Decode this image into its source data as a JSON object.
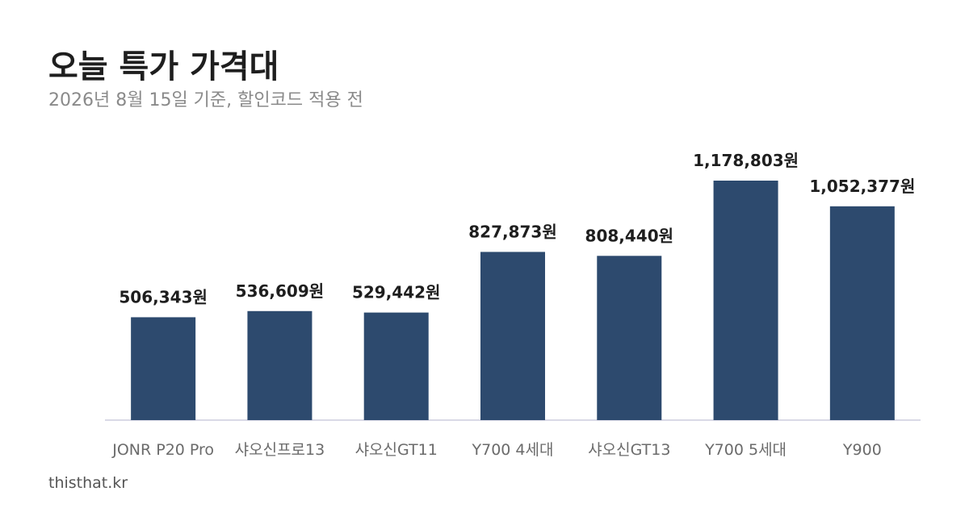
{
  "header": {
    "title": "오늘 특가 가격대",
    "subtitle": "2026년 8월 15일 기준, 할인코드 적용 전"
  },
  "footer": {
    "source": "thisthat.kr"
  },
  "colors": {
    "bar": "#2d4a6e",
    "baseline": "#d9d9e6"
  },
  "chart_data": {
    "type": "bar",
    "categories": [
      "JONR P20 Pro",
      "샤오신프로13",
      "샤오신GT11",
      "Y700 4세대",
      "샤오신GT13",
      "Y700 5세대",
      "Y900"
    ],
    "values": [
      506343,
      536609,
      529442,
      827873,
      808440,
      1178803,
      1052377
    ],
    "value_labels": [
      "506,343원",
      "536,609원",
      "529,442원",
      "827,873원",
      "808,440원",
      "1,178,803원",
      "1,052,377원"
    ],
    "ylim": [
      0,
      1178803
    ],
    "grid": false,
    "legend": "none"
  }
}
